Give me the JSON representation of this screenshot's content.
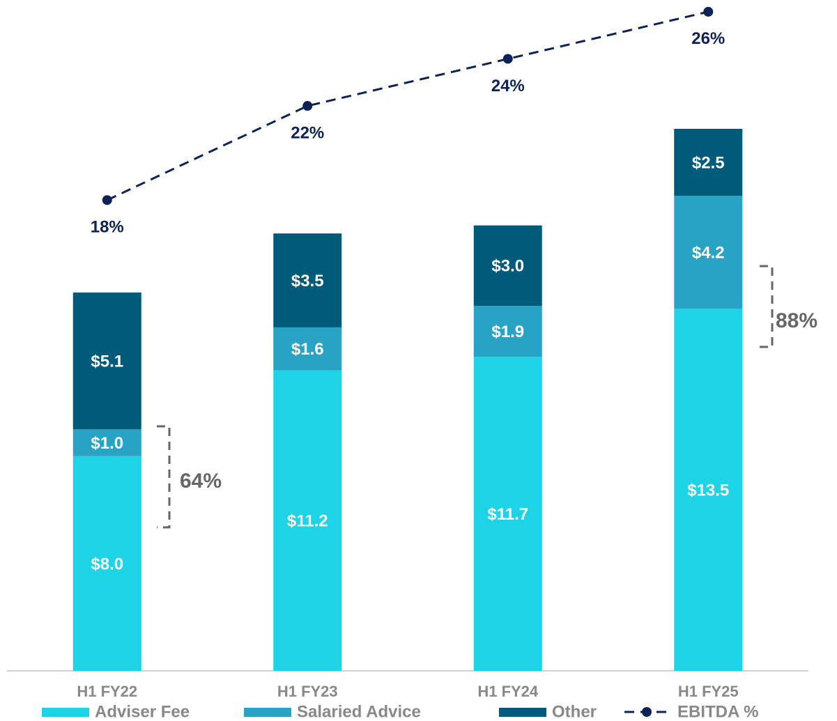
{
  "chart_data": {
    "type": "bar",
    "stacked": true,
    "categories": [
      "H1 FY22",
      "H1 FY23",
      "H1 FY24",
      "H1 FY25"
    ],
    "series": [
      {
        "name": "Adviser Fee",
        "color": "#1fd3e6",
        "values": [
          8.0,
          11.2,
          11.7,
          13.5
        ],
        "value_labels": [
          "$8.0",
          "$11.2",
          "$11.7",
          "$13.5"
        ]
      },
      {
        "name": "Salaried Advice",
        "color": "#29a3c4",
        "values": [
          1.0,
          1.6,
          1.9,
          4.2
        ],
        "value_labels": [
          "$1.0",
          "$1.6",
          "$1.9",
          "$4.2"
        ]
      },
      {
        "name": "Other",
        "color": "#005a7a",
        "values": [
          5.1,
          3.5,
          3.0,
          2.5
        ],
        "value_labels": [
          "$5.1",
          "$3.5",
          "$3.0",
          "$2.5"
        ]
      },
      {
        "name": "EBITDA %",
        "color": "#0d2357",
        "type": "line",
        "axis": "y2",
        "values": [
          18,
          22,
          24,
          26
        ],
        "value_labels": [
          "18%",
          "22%",
          "24%",
          "26%"
        ]
      }
    ],
    "ylim": [
      0,
      25
    ],
    "y2lim": [
      -2,
      26.5
    ],
    "annotations": [
      "64%",
      "88%"
    ]
  }
}
